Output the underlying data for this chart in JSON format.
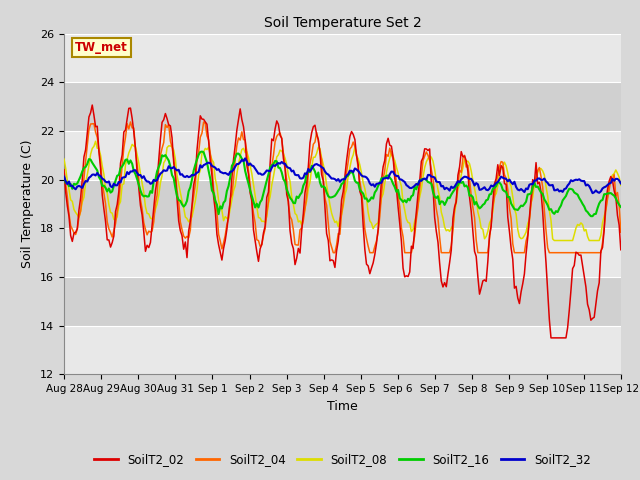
{
  "title": "Soil Temperature Set 2",
  "xlabel": "Time",
  "ylabel": "Soil Temperature (C)",
  "ylim": [
    12,
    26
  ],
  "yticks": [
    12,
    14,
    16,
    18,
    20,
    22,
    24,
    26
  ],
  "annotation_text": "TW_met",
  "annotation_color": "#cc0000",
  "annotation_bg": "#ffffcc",
  "annotation_border": "#aa8800",
  "series_colors": {
    "SoilT2_02": "#dd0000",
    "SoilT2_04": "#ff6600",
    "SoilT2_08": "#dddd00",
    "SoilT2_16": "#00cc00",
    "SoilT2_32": "#0000cc"
  },
  "fig_bg": "#d8d8d8",
  "plot_bg_light": "#e8e8e8",
  "plot_bg_dark": "#d0d0d0",
  "grid_color": "#ffffff",
  "n_points": 336,
  "x_start": 0,
  "x_end": 15,
  "xtick_labels": [
    "Aug 28",
    "Aug 29",
    "Aug 30",
    "Aug 31",
    "Sep 1",
    "Sep 2",
    "Sep 3",
    "Sep 4",
    "Sep 5",
    "Sep 6",
    "Sep 7",
    "Sep 8",
    "Sep 9",
    "Sep 10",
    "Sep 11",
    "Sep 12"
  ],
  "xtick_positions": [
    0,
    1,
    2,
    3,
    4,
    5,
    6,
    7,
    8,
    9,
    10,
    11,
    12,
    13,
    14,
    15
  ]
}
